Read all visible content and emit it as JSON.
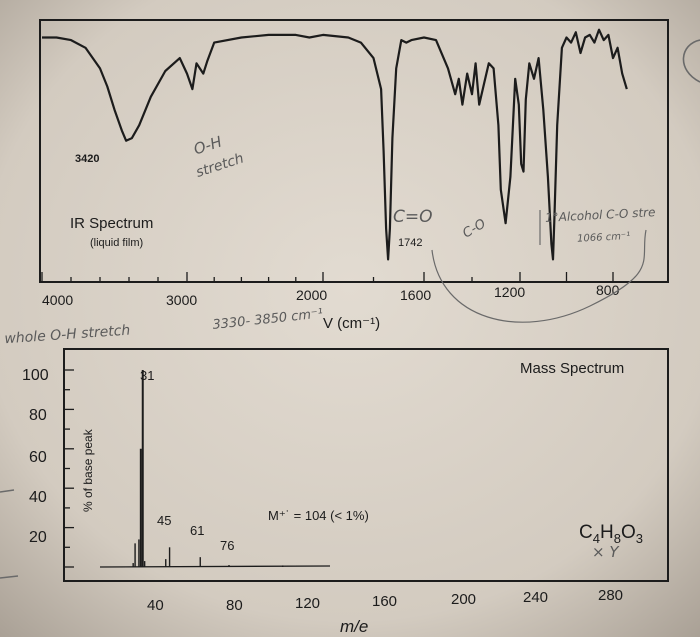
{
  "colors": {
    "paper": "#ddd6cc",
    "ink": "#1c1c1c",
    "pencil": "#5a5a5a"
  },
  "chart_data": [
    {
      "type": "line",
      "title": "IR Spectrum",
      "subtitle": "(liquid film)",
      "xlabel": "V (cm⁻¹)",
      "ylabel": "",
      "xlim": [
        4000,
        700
      ],
      "x_ticks": [
        "4000",
        "3000",
        "2000",
        "1600",
        "1200",
        "800"
      ],
      "peak_labels": [
        {
          "text": "3420",
          "x": 3420
        },
        {
          "text": "1742",
          "x": 1742
        }
      ],
      "series": [
        {
          "x": [
            4000,
            3900,
            3800,
            3700,
            3600,
            3550,
            3500,
            3450,
            3420,
            3380,
            3330,
            3250,
            3150,
            3050,
            3000,
            2960,
            2930,
            2880,
            2850,
            2800,
            2600,
            2400,
            2200,
            2100,
            2000,
            1900,
            1850,
            1800,
            1770,
            1760,
            1750,
            1742,
            1735,
            1725,
            1710,
            1690,
            1670,
            1650,
            1600,
            1550,
            1500,
            1470,
            1455,
            1440,
            1420,
            1400,
            1385,
            1370,
            1350,
            1330,
            1310,
            1290,
            1280,
            1260,
            1240,
            1220,
            1205,
            1195,
            1185,
            1175,
            1160,
            1140,
            1120,
            1100,
            1080,
            1065,
            1058,
            1052,
            1040,
            1020,
            1000,
            980,
            960,
            940,
            920,
            900,
            880,
            860,
            840,
            820,
            800,
            780,
            760,
            740
          ],
          "y": [
            94,
            94,
            93,
            90,
            82,
            75,
            66,
            58,
            54,
            55,
            60,
            71,
            81,
            86,
            80,
            74,
            84,
            80,
            85,
            92,
            94,
            95,
            95,
            94,
            95,
            94,
            92,
            86,
            74,
            50,
            20,
            8,
            20,
            55,
            82,
            93,
            92,
            93,
            94,
            93,
            82,
            72,
            78,
            68,
            80,
            72,
            84,
            68,
            76,
            84,
            82,
            60,
            35,
            22,
            40,
            78,
            68,
            45,
            42,
            70,
            84,
            78,
            86,
            66,
            40,
            14,
            8,
            24,
            60,
            90,
            94,
            92,
            96,
            88,
            94,
            95,
            92,
            97,
            93,
            95,
            86,
            90,
            80,
            74
          ]
        }
      ]
    },
    {
      "type": "bar",
      "title": "Mass Spectrum",
      "xlabel": "m/e",
      "ylabel": "% of base peak",
      "xlim": [
        20,
        290
      ],
      "ylim": [
        0,
        100
      ],
      "x_ticks": [
        "40",
        "80",
        "120",
        "160",
        "200",
        "240",
        "280"
      ],
      "y_ticks": [
        "100",
        "80",
        "60",
        "40",
        "20"
      ],
      "peaks": [
        {
          "x": 26,
          "y": 2
        },
        {
          "x": 27,
          "y": 12
        },
        {
          "x": 29,
          "y": 14
        },
        {
          "x": 30,
          "y": 60
        },
        {
          "x": 31,
          "y": 100
        },
        {
          "x": 32,
          "y": 3
        },
        {
          "x": 43,
          "y": 4
        },
        {
          "x": 45,
          "y": 10
        },
        {
          "x": 61,
          "y": 5
        },
        {
          "x": 76,
          "y": 1
        },
        {
          "x": 104,
          "y": 0.5
        }
      ],
      "peak_labels": [
        {
          "text": "31",
          "x": 31
        },
        {
          "text": "45",
          "x": 45
        },
        {
          "text": "61",
          "x": 61
        },
        {
          "text": "76",
          "x": 76
        }
      ],
      "annotations": {
        "molecular_ion": "M⁺˙ = 104  (< 1%)",
        "formula": "C4H8O3"
      }
    }
  ],
  "handwriting": {
    "oh_stretch": [
      "O-H",
      "stretch"
    ],
    "co_label": "C=O",
    "c_o_label": "C-O",
    "alcohol_note": [
      "1°Alcohol C-O stre",
      "1066 cm⁻¹"
    ],
    "range_note": "3330- 3850 cm⁻¹",
    "whole_note": "whole O-H stretch",
    "xy_note": "× Y"
  }
}
